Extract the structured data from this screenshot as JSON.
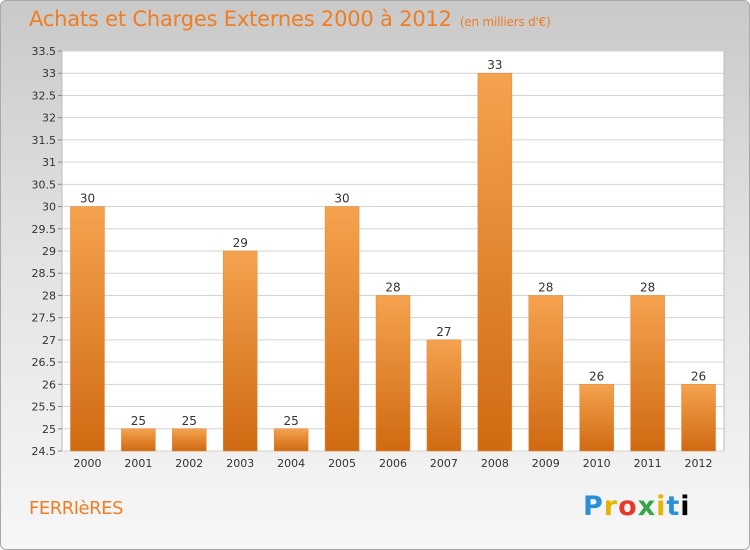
{
  "header": {
    "title": "Achats et Charges Externes 2000 à 2012",
    "subtitle": "(en milliers d'€)"
  },
  "footer": {
    "commune": "FERRIèRES",
    "logo_letters": [
      "P",
      "r",
      "o",
      "x",
      "i",
      "t",
      "i"
    ]
  },
  "colors": {
    "bar_top": "#f5a24e",
    "bar_bottom": "#d06a12",
    "accent": "#f07d23"
  },
  "chart_data": {
    "type": "bar",
    "categories": [
      "2000",
      "2001",
      "2002",
      "2003",
      "2004",
      "2005",
      "2006",
      "2007",
      "2008",
      "2009",
      "2010",
      "2011",
      "2012"
    ],
    "values": [
      30,
      25,
      25,
      29,
      25,
      30,
      28,
      27,
      33,
      28,
      26,
      28,
      26
    ],
    "title": "Achats et Charges Externes 2000 à 2012",
    "subtitle": "(en milliers d'€)",
    "ylim": [
      24.5,
      33.5
    ],
    "yticks": [
      "24.5",
      "25",
      "25.5",
      "26",
      "26.5",
      "27",
      "27.5",
      "28",
      "28.5",
      "29",
      "29.5",
      "30",
      "30.5",
      "31",
      "31.5",
      "32",
      "32.5",
      "33",
      "33.5"
    ],
    "grid": true,
    "legend": "none"
  }
}
